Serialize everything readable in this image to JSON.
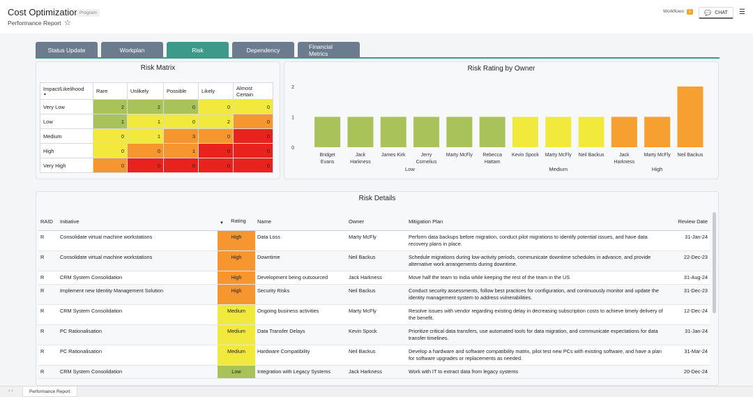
{
  "header": {
    "title": "Cost Optimization",
    "badge": "Program",
    "subtitle": "Performance Report",
    "workflows_label": "Workflows",
    "workflows_count": "1",
    "chat_label": "CHAT"
  },
  "tabs": [
    {
      "label": "Status Update",
      "active": false
    },
    {
      "label": "Workplan",
      "active": false
    },
    {
      "label": "Risk",
      "active": true
    },
    {
      "label": "Dependency",
      "active": false
    },
    {
      "label": "Financial Metrics",
      "active": false
    }
  ],
  "risk_matrix": {
    "title": "Risk Matrix",
    "corner_label": "Impact/Likelihood",
    "columns": [
      "Rare",
      "Unlikely",
      "Possible",
      "Likely",
      "Almost Certain"
    ],
    "rows": [
      {
        "label": "Very Low",
        "values": [
          "2",
          "2",
          "0",
          "0",
          "0"
        ],
        "colors": [
          "#a9c25a",
          "#a9c25a",
          "#a9c25a",
          "#f1ea3c",
          "#f1ea3c"
        ]
      },
      {
        "label": "Low",
        "values": [
          "1",
          "1",
          "0",
          "2",
          "0"
        ],
        "colors": [
          "#a9c25a",
          "#f1ea3c",
          "#f1ea3c",
          "#f1ea3c",
          "#f5962e"
        ]
      },
      {
        "label": "Medium",
        "values": [
          "0",
          "1",
          "3",
          "0",
          "0"
        ],
        "colors": [
          "#f1ea3c",
          "#f1ea3c",
          "#f5962e",
          "#f5962e",
          "#e8221c"
        ]
      },
      {
        "label": "High",
        "values": [
          "0",
          "0",
          "1",
          "0",
          "0"
        ],
        "colors": [
          "#f1ea3c",
          "#f5962e",
          "#f5962e",
          "#e8221c",
          "#e8221c"
        ]
      },
      {
        "label": "Very High",
        "values": [
          "0",
          "0",
          "0",
          "0",
          "0"
        ],
        "colors": [
          "#f5962e",
          "#e8221c",
          "#e8221c",
          "#e8221c",
          "#e8221c"
        ]
      }
    ]
  },
  "chart_data": {
    "type": "bar",
    "title": "Risk Rating by Owner",
    "yticks": [
      "0",
      "1",
      "2"
    ],
    "ylim": [
      0,
      2
    ],
    "bars": [
      {
        "owner": "Bridget Evans",
        "lines": [
          "Bridget",
          "Evans"
        ],
        "value": 1,
        "group": "Low",
        "color": "#a9c25a"
      },
      {
        "owner": "Jack Harkness",
        "lines": [
          "Jack",
          "Harkness"
        ],
        "value": 1,
        "group": "Low",
        "color": "#a9c25a"
      },
      {
        "owner": "James Kirk",
        "lines": [
          "James Kirk"
        ],
        "value": 1,
        "group": "Low",
        "color": "#a9c25a"
      },
      {
        "owner": "Jerry Cornelius",
        "lines": [
          "Jerry",
          "Cornelius"
        ],
        "value": 1,
        "group": "Low",
        "color": "#a9c25a"
      },
      {
        "owner": "Marty McFly",
        "lines": [
          "Marty McFly"
        ],
        "value": 1,
        "group": "Low",
        "color": "#a9c25a"
      },
      {
        "owner": "Rebecca Hattam",
        "lines": [
          "Rebecca",
          "Hattam"
        ],
        "value": 1,
        "group": "Low",
        "color": "#a9c25a"
      },
      {
        "owner": "Kevin Spock",
        "lines": [
          "Kevin Spock"
        ],
        "value": 1,
        "group": "Medium",
        "color": "#f1ea3c"
      },
      {
        "owner": "Marty McFly",
        "lines": [
          "Marty McFly"
        ],
        "value": 1,
        "group": "Medium",
        "color": "#f1ea3c"
      },
      {
        "owner": "Neil Backus",
        "lines": [
          "Neil Backus"
        ],
        "value": 1,
        "group": "Medium",
        "color": "#f1ea3c"
      },
      {
        "owner": "Jack Harkness",
        "lines": [
          "Jack",
          "Harkness"
        ],
        "value": 1,
        "group": "High",
        "color": "#f5a030"
      },
      {
        "owner": "Marty McFly",
        "lines": [
          "Marty McFly"
        ],
        "value": 1,
        "group": "High",
        "color": "#f5a030"
      },
      {
        "owner": "Neil Backus",
        "lines": [
          "Neil Backus"
        ],
        "value": 2,
        "group": "High",
        "color": "#f5a030"
      }
    ],
    "groups": [
      "Low",
      "Medium",
      "High"
    ]
  },
  "risk_details": {
    "title": "Risk Details",
    "columns": {
      "raid": "RAID",
      "initiative": "Initiative",
      "rating": "Rating",
      "name": "Name",
      "owner": "Owner",
      "mitigation": "Mitigation Plan",
      "review": "Review Date"
    },
    "rows": [
      {
        "raid": "R",
        "initiative": "Consolidate virtual machine workstations",
        "rating": "High",
        "rating_color": "#f5962e",
        "name": "Data Loss",
        "owner": "Marty McFly",
        "mitigation": "Perform data backups before migration, conduct pilot migrations to identify potential issues, and have data recovery plans in place.",
        "review": "31-Jan-24"
      },
      {
        "raid": "R",
        "initiative": "Consolidate virtual machine workstations",
        "rating": "High",
        "rating_color": "#f5962e",
        "name": "Downtime",
        "owner": "Neil Backus",
        "mitigation": "Schedule migrations during low-activity periods, communicate downtime schedules in advance, and provide alternative work arrangements during downtime.",
        "review": "22-Dec-23"
      },
      {
        "raid": "R",
        "initiative": "CRM System Consolidation",
        "rating": "High",
        "rating_color": "#f5962e",
        "name": "Development being outsourced",
        "owner": "Jack Harkness",
        "mitigation": "Move half the team to India while keeping the rest of the team in the US",
        "review": "31-Aug-24"
      },
      {
        "raid": "R",
        "initiative": "Implement new Identity Management Solution",
        "rating": "High",
        "rating_color": "#f5962e",
        "name": "Security Risks",
        "owner": "Neil Backus",
        "mitigation": "Conduct security assessments, follow best practices for configuration, and continuously monitor and update the identity management system to address vulnerabilities.",
        "review": "31-Dec-23"
      },
      {
        "raid": "R",
        "initiative": "CRM System Consolidation",
        "rating": "Medium",
        "rating_color": "#f1ea3c",
        "name": "Ongoing business activities",
        "owner": "Marty McFly",
        "mitigation": "Resolve issues with vendor regarding existing delay in decreasing subscription costs to achieve timely delivery of the benefit.",
        "review": "12-Dec-24"
      },
      {
        "raid": "R",
        "initiative": "PC Rationalisation",
        "rating": "Medium",
        "rating_color": "#f1ea3c",
        "name": "Data Transfer Delays",
        "owner": "Kevin Spock",
        "mitigation": "Prioritize critical data transfers, use automated tools for data migration, and communicate expectations for data transfer timelines.",
        "review": "31-Jan-24"
      },
      {
        "raid": "R",
        "initiative": "PC Rationalisation",
        "rating": "Medium",
        "rating_color": "#f1ea3c",
        "name": "Hardware Compatibility",
        "owner": "Neil Backus",
        "mitigation": "Develop a hardware and software compatibility matrix, pilot test new PCs with existing software, and have a plan for software upgrades or replacements as needed.",
        "review": "31-Mar-24"
      },
      {
        "raid": "R",
        "initiative": "CRM System Consolidation",
        "rating": "Low",
        "rating_color": "#a9c25a",
        "name": "Integration with Legacy Systems",
        "owner": "Jack Harkness",
        "mitigation": "Work with IT to extract data from legacy systems",
        "review": "20-Dec-24"
      }
    ]
  },
  "footer": {
    "sheet_tab": "Performance Report"
  }
}
